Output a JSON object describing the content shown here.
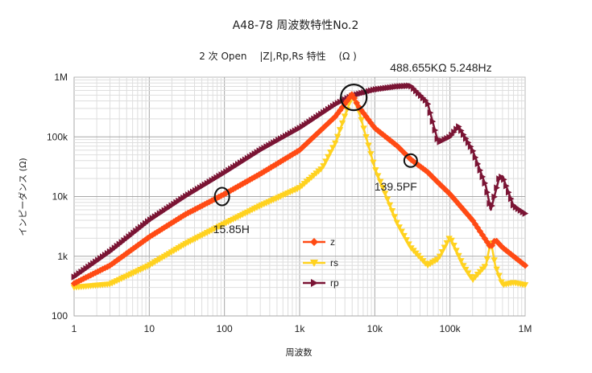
{
  "chart_data": {
    "type": "line",
    "title": "A48-78 周波数特性No.2",
    "subtitle": "2 次 Open　 |Z|,Rp,Rs 特性　 (Ω )",
    "xlabel": "周波数",
    "ylabel": "インピーダンス (Ω)",
    "xscale": "log",
    "yscale": "log",
    "xlim": [
      1,
      1000000
    ],
    "ylim": [
      100,
      1000000
    ],
    "x_tick_labels": [
      "1",
      "10",
      "100",
      "1k",
      "10k",
      "100k",
      "1M"
    ],
    "y_tick_labels": [
      "100",
      "1k",
      "10k",
      "100k",
      "1M"
    ],
    "grid": true,
    "legend_position": "center-left inside plot",
    "series": [
      {
        "name": "z",
        "color": "#ff4a14",
        "marker": "diamond",
        "points": [
          [
            1,
            350
          ],
          [
            3,
            700
          ],
          [
            10,
            2100
          ],
          [
            30,
            5000
          ],
          [
            100,
            11000
          ],
          [
            300,
            24000
          ],
          [
            1000,
            60000
          ],
          [
            3000,
            220000
          ],
          [
            5000,
            520000
          ],
          [
            6000,
            330000
          ],
          [
            10000,
            140000
          ],
          [
            20000,
            70000
          ],
          [
            30000,
            42000
          ],
          [
            50000,
            26000
          ],
          [
            70000,
            17000
          ],
          [
            100000,
            11000
          ],
          [
            200000,
            4000
          ],
          [
            350000,
            1400
          ],
          [
            400000,
            1900
          ],
          [
            500000,
            1400
          ],
          [
            1000000,
            700
          ]
        ]
      },
      {
        "name": "rs",
        "color": "#ffd21f",
        "marker": "triangle-down",
        "points": [
          [
            1,
            300
          ],
          [
            3,
            340
          ],
          [
            10,
            700
          ],
          [
            30,
            1600
          ],
          [
            100,
            3500
          ],
          [
            300,
            7000
          ],
          [
            1000,
            14000
          ],
          [
            2000,
            30000
          ],
          [
            3000,
            80000
          ],
          [
            5000,
            500000
          ],
          [
            6000,
            300000
          ],
          [
            10000,
            30000
          ],
          [
            20000,
            3500
          ],
          [
            30000,
            1400
          ],
          [
            50000,
            700
          ],
          [
            70000,
            900
          ],
          [
            100000,
            2100
          ],
          [
            150000,
            700
          ],
          [
            200000,
            400
          ],
          [
            300000,
            700
          ],
          [
            350000,
            1800
          ],
          [
            400000,
            700
          ],
          [
            500000,
            330
          ],
          [
            700000,
            360
          ],
          [
            1000000,
            330
          ]
        ]
      },
      {
        "name": "rp",
        "color": "#7a1434",
        "marker": "triangle-right",
        "points": [
          [
            1,
            450
          ],
          [
            3,
            1200
          ],
          [
            10,
            4000
          ],
          [
            30,
            10000
          ],
          [
            100,
            25000
          ],
          [
            300,
            60000
          ],
          [
            1000,
            140000
          ],
          [
            3000,
            350000
          ],
          [
            5000,
            488655
          ],
          [
            10000,
            620000
          ],
          [
            20000,
            700000
          ],
          [
            30000,
            720000
          ],
          [
            50000,
            380000
          ],
          [
            70000,
            80000
          ],
          [
            100000,
            100000
          ],
          [
            130000,
            150000
          ],
          [
            200000,
            60000
          ],
          [
            300000,
            15000
          ],
          [
            350000,
            6000
          ],
          [
            450000,
            20000
          ],
          [
            500000,
            22000
          ],
          [
            700000,
            7000
          ],
          [
            1000000,
            5200
          ]
        ]
      }
    ],
    "annotations": [
      {
        "text": "488.655KΩ 5.248Hz",
        "x": 5248,
        "y": 488655
      },
      {
        "text": "139.5PF",
        "x": 30000,
        "y": 40000
      },
      {
        "text": "15.85H",
        "x": 100,
        "y": 10000
      }
    ]
  }
}
